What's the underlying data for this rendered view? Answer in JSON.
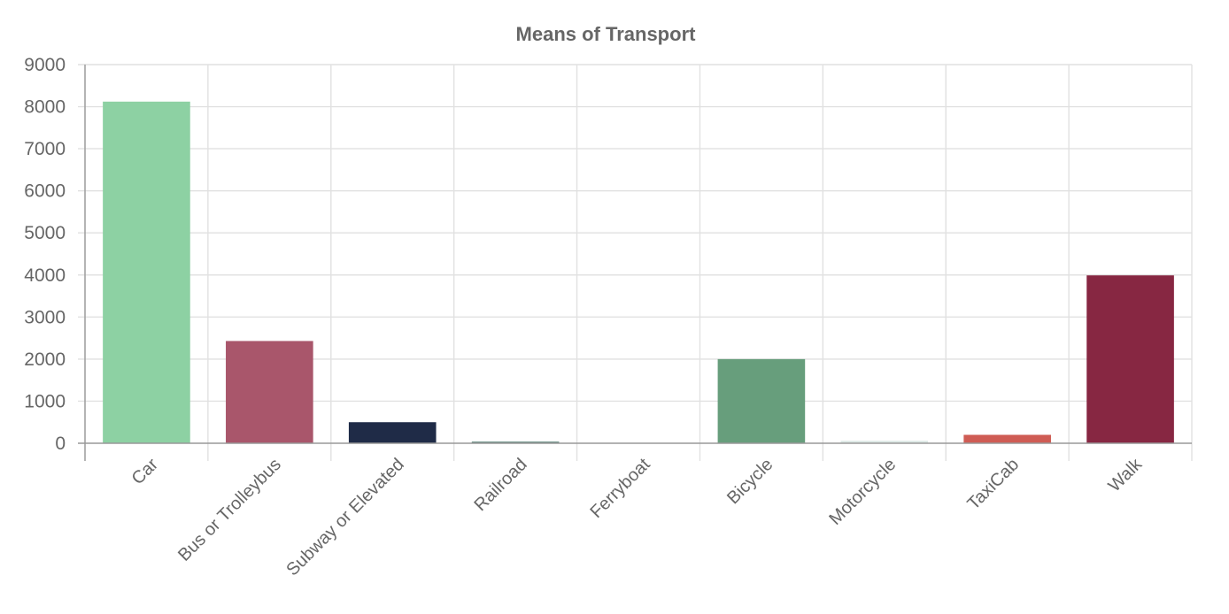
{
  "chart_data": {
    "type": "bar",
    "title": "Means of Transport",
    "categories": [
      "Car",
      "Bus or Trolleybus",
      "Subway or Elevated",
      "Railroad",
      "Ferryboat",
      "Bicycle",
      "Motorcycle",
      "TaxiCab",
      "Walk"
    ],
    "values": [
      8120,
      2430,
      500,
      40,
      0,
      2000,
      60,
      200,
      3990
    ],
    "colors": [
      "#8dd1a3",
      "#a9566b",
      "#1f2b47",
      "#6b8f86",
      "#ffffff",
      "#679e7c",
      "#dde9e6",
      "#cf5c54",
      "#872742"
    ],
    "ylim": [
      0,
      9000
    ],
    "yticks": [
      0,
      1000,
      2000,
      3000,
      4000,
      5000,
      6000,
      7000,
      8000,
      9000
    ],
    "xlabel": "",
    "ylabel": "",
    "grid": true,
    "legend": "none"
  }
}
